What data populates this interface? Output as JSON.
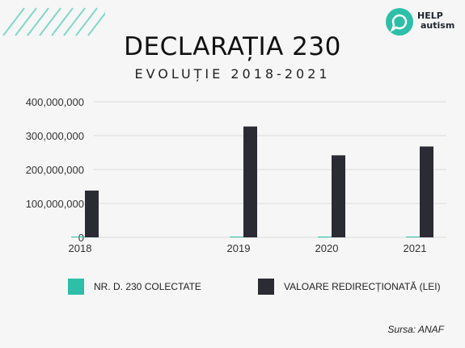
{
  "header": {
    "title": "DECLARAȚIA 230",
    "subtitle": "EVOLUȚIE 2018-2021",
    "logo_line1": "HELP",
    "logo_line2": "autism"
  },
  "colors": {
    "accent": "#2dbfa8",
    "dark": "#2a2b33",
    "stripes": "#7fd8c8",
    "grid": "#d9d9d9"
  },
  "chart_data": {
    "type": "bar",
    "categories": [
      "2018",
      "2019",
      "2020",
      "2021"
    ],
    "series": [
      {
        "name": "NR. D. 230 COLECTATE",
        "color": "#2dbfa8",
        "values": [
          450000,
          500000,
          520000,
          550000
        ]
      },
      {
        "name": "VALOARE REDIRECȚIONATĂ (LEI)",
        "color": "#2a2b33",
        "values": [
          138000000,
          327000000,
          242000000,
          268000000
        ]
      }
    ],
    "yticks": [
      0,
      100000000,
      200000000,
      300000000,
      400000000
    ],
    "ytick_labels": [
      "0",
      "100,000,000",
      "200,000,000",
      "300,000,000",
      "400,000,000"
    ],
    "ylim": [
      0,
      400000000
    ],
    "grid": true,
    "legend_position": "bottom"
  },
  "footer": {
    "source": "Sursa: ANAF"
  }
}
